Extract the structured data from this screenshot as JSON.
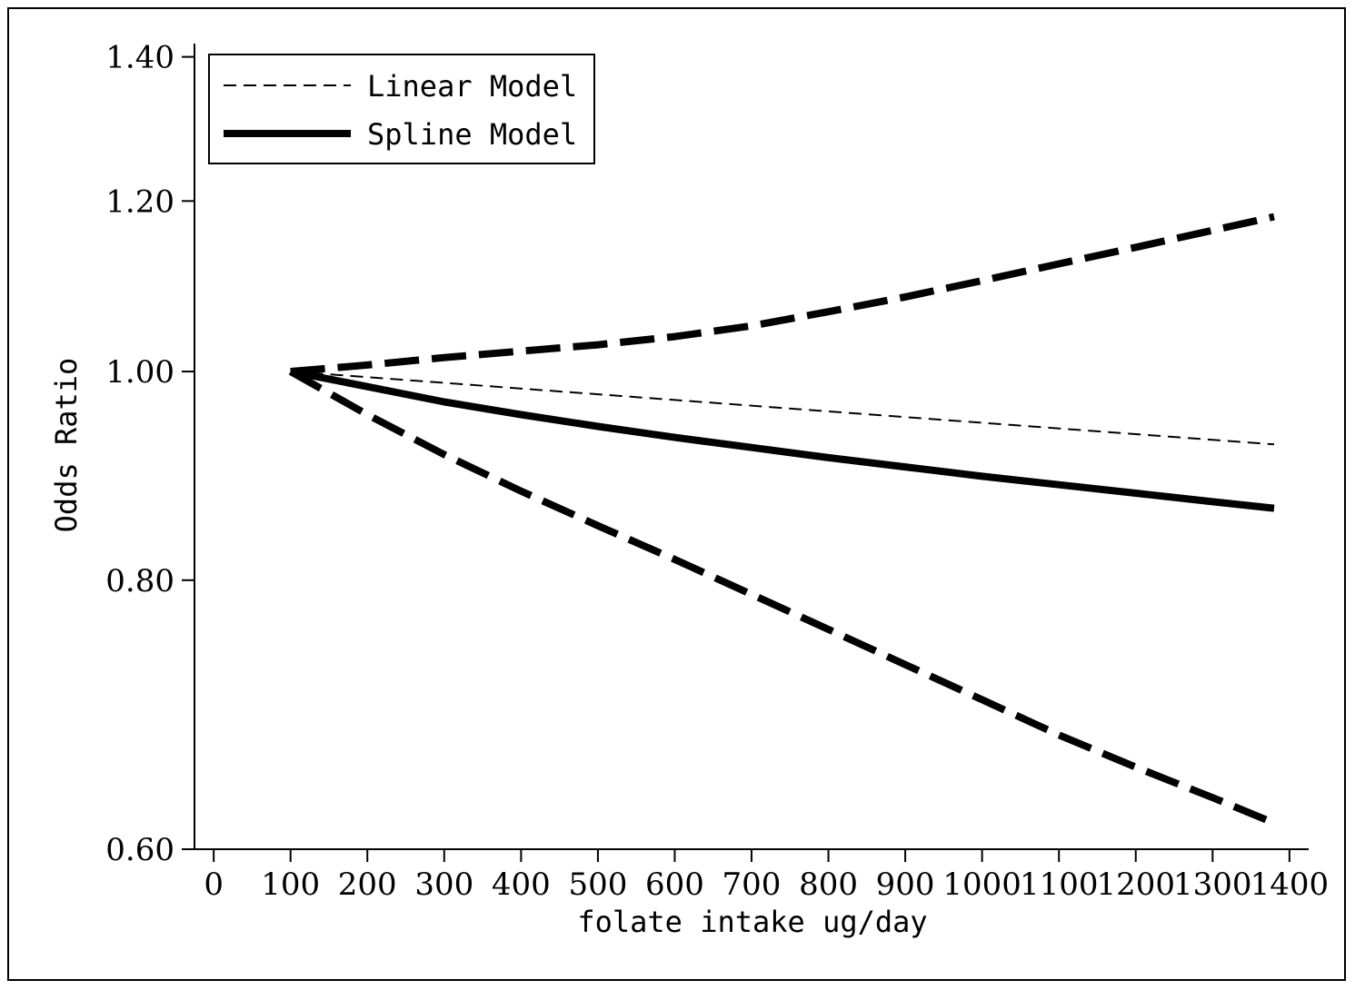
{
  "chart_data": {
    "type": "line",
    "title": "",
    "xlabel": "folate intake ug/day",
    "ylabel": "Odds Ratio",
    "xlim": [
      -25,
      1425
    ],
    "ylim": [
      0.6,
      1.42
    ],
    "y_scale": "log",
    "xticks": [
      0,
      100,
      200,
      300,
      400,
      500,
      600,
      700,
      800,
      900,
      1000,
      1100,
      1200,
      1300,
      1400
    ],
    "yticks": [
      0.6,
      0.8,
      1.0,
      1.2,
      1.4
    ],
    "ytick_labels": [
      "0.60",
      "0.80",
      "1.00",
      "1.20",
      "1.40"
    ],
    "grid": false,
    "legend": {
      "position": "top-left",
      "entries": [
        {
          "label": "Linear Model",
          "style": "thin-dashed"
        },
        {
          "label": "Spline Model",
          "style": "thick-solid"
        }
      ]
    },
    "series": [
      {
        "name": "Linear Model",
        "style": "thin-dashed",
        "color": "#000000",
        "x": [
          100,
          1380
        ],
        "y": [
          1.0,
          0.925
        ]
      },
      {
        "name": "Spline Model",
        "style": "thick-solid",
        "color": "#000000",
        "x": [
          100,
          200,
          300,
          400,
          500,
          600,
          700,
          800,
          900,
          1000,
          1100,
          1200,
          1300,
          1380
        ],
        "y": [
          1.0,
          0.984,
          0.968,
          0.955,
          0.943,
          0.932,
          0.922,
          0.912,
          0.903,
          0.894,
          0.886,
          0.878,
          0.87,
          0.864
        ]
      },
      {
        "style": "thick-dashed-upper-ci",
        "color": "#000000",
        "x": [
          100,
          200,
          300,
          400,
          500,
          600,
          700,
          800,
          900,
          1000,
          1100,
          1200,
          1300,
          1380
        ],
        "y": [
          1.0,
          1.007,
          1.015,
          1.022,
          1.029,
          1.038,
          1.05,
          1.066,
          1.083,
          1.102,
          1.122,
          1.142,
          1.163,
          1.18
        ]
      },
      {
        "style": "thick-dashed-lower-ci",
        "color": "#000000",
        "x": [
          100,
          200,
          300,
          400,
          500,
          600,
          700,
          800,
          900,
          1000,
          1100,
          1200,
          1300,
          1380
        ],
        "y": [
          1.0,
          0.955,
          0.915,
          0.88,
          0.848,
          0.818,
          0.788,
          0.759,
          0.731,
          0.704,
          0.678,
          0.655,
          0.634,
          0.617
        ]
      }
    ]
  }
}
